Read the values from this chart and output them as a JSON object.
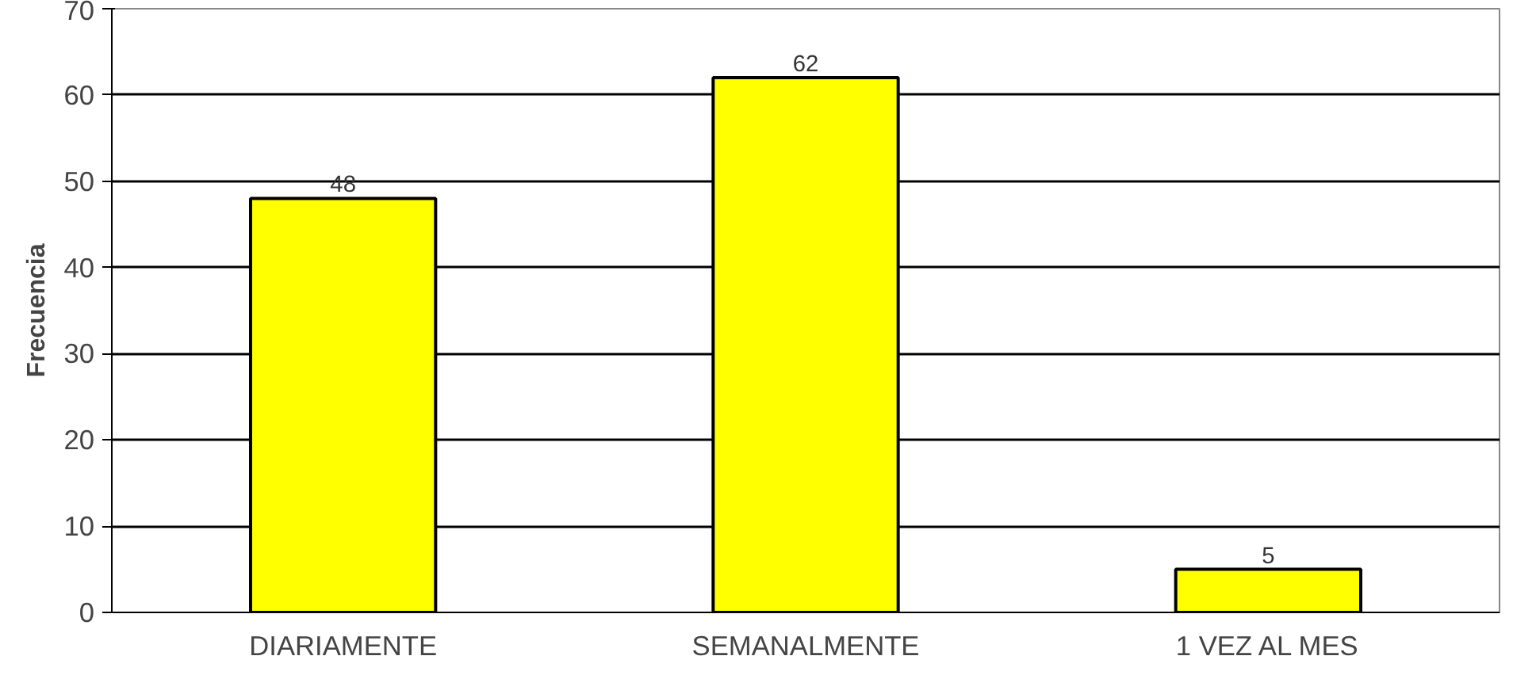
{
  "chart_data": {
    "type": "bar",
    "ylabel": "Frecuencia",
    "categories": [
      "DIARIAMENTE",
      "SEMANALMENTE",
      "1 VEZ AL MES"
    ],
    "values": [
      48,
      62,
      5
    ],
    "color": "#ffff00",
    "ylim": [
      0,
      70
    ],
    "yticks": [
      0,
      10,
      20,
      30,
      40,
      50,
      60,
      70
    ],
    "grid": "y",
    "data_labels": true
  }
}
